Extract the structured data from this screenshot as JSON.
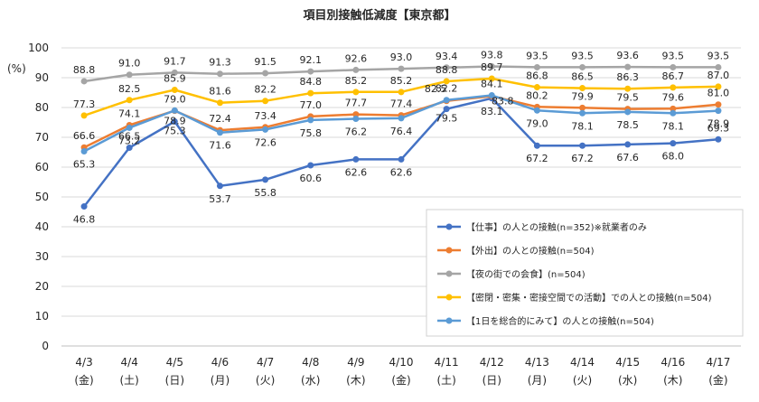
{
  "chart_data": {
    "type": "line",
    "title": "項目別接触低減度【東京都】",
    "ylabel": "(%)",
    "ylim": [
      0,
      100
    ],
    "yticks": [
      0,
      10,
      20,
      30,
      40,
      50,
      60,
      70,
      80,
      90,
      100
    ],
    "grid": true,
    "legend_position": "bottom-right",
    "categories": [
      {
        "date": "4/3",
        "day": "(金)"
      },
      {
        "date": "4/4",
        "day": "(土)"
      },
      {
        "date": "4/5",
        "day": "(日)"
      },
      {
        "date": "4/6",
        "day": "(月)"
      },
      {
        "date": "4/7",
        "day": "(火)"
      },
      {
        "date": "4/8",
        "day": "(水)"
      },
      {
        "date": "4/9",
        "day": "(木)"
      },
      {
        "date": "4/10",
        "day": "(金)"
      },
      {
        "date": "4/11",
        "day": "(土)"
      },
      {
        "date": "4/12",
        "day": "(日)"
      },
      {
        "date": "4/13",
        "day": "(月)"
      },
      {
        "date": "4/14",
        "day": "(火)"
      },
      {
        "date": "4/15",
        "day": "(水)"
      },
      {
        "date": "4/16",
        "day": "(木)"
      },
      {
        "date": "4/17",
        "day": "(金)"
      }
    ],
    "series": [
      {
        "name": "【仕事】の人との接触(n=352)※就業者のみ",
        "color": "#4472C4",
        "values": [
          46.8,
          66.5,
          75.3,
          53.7,
          55.8,
          60.6,
          62.6,
          62.6,
          79.5,
          83.1,
          67.2,
          67.2,
          67.6,
          68.0,
          69.3
        ]
      },
      {
        "name": "【外出】の人との接触(n=504)",
        "color": "#ED7D31",
        "values": [
          66.6,
          74.1,
          78.9,
          72.4,
          73.4,
          77.0,
          77.7,
          77.4,
          82.2,
          83.8,
          80.2,
          79.9,
          79.5,
          79.6,
          81.0
        ]
      },
      {
        "name": "【夜の街での会食】(n=504)",
        "color": "#A5A5A5",
        "values": [
          88.8,
          91.0,
          91.7,
          91.3,
          91.5,
          92.1,
          92.6,
          93.0,
          93.4,
          93.8,
          93.5,
          93.5,
          93.6,
          93.5,
          93.5
        ]
      },
      {
        "name": "【密閉・密集・密接空間での活動】での人との接触(n=504)",
        "color": "#FFC000",
        "values": [
          77.3,
          82.5,
          85.9,
          81.6,
          82.2,
          84.8,
          85.2,
          85.2,
          88.8,
          89.7,
          86.8,
          86.5,
          86.3,
          86.7,
          87.0
        ]
      },
      {
        "name": "【1日を総合的にみて】の人との接触(n=504)",
        "color": "#5B9BD5",
        "values": [
          65.3,
          73.2,
          79.0,
          71.6,
          72.6,
          75.8,
          76.2,
          76.4,
          82.5,
          84.1,
          79.0,
          78.1,
          78.5,
          78.1,
          78.9
        ]
      }
    ]
  }
}
